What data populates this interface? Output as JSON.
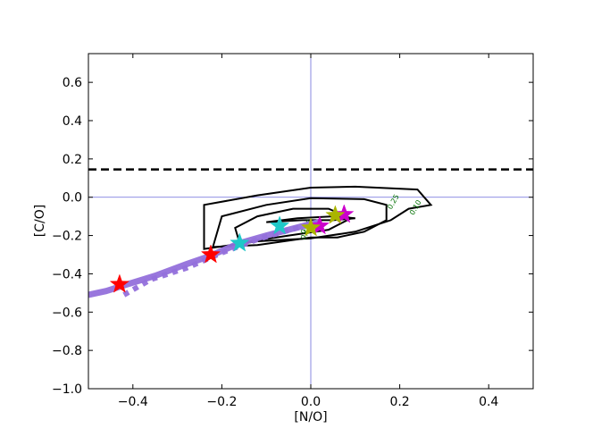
{
  "chart_data": {
    "type": "line",
    "title": "",
    "xlabel": "[N/O]",
    "ylabel": "[C/O]",
    "xlim": [
      -0.5,
      0.5
    ],
    "ylim": [
      -1.0,
      0.75
    ],
    "xticks": [
      -0.4,
      -0.2,
      0.0,
      0.2,
      0.4
    ],
    "yticks": [
      -1.0,
      -0.8,
      -0.6,
      -0.4,
      -0.2,
      0.0,
      0.2,
      0.4,
      0.6
    ],
    "xtick_labels": [
      "−0.4",
      "−0.2",
      "0.0",
      "0.2",
      "0.4"
    ],
    "ytick_labels": [
      "−1.0",
      "−0.8",
      "−0.6",
      "−0.4",
      "−0.2",
      "0.0",
      "0.2",
      "0.4",
      "0.6"
    ],
    "grid": false,
    "reference_lines": {
      "color": "#6b6bdb",
      "x": 0.0,
      "y": 0.0
    },
    "dashed_line": {
      "y": 0.145,
      "color": "#000000",
      "style": "dashed"
    },
    "contours": [
      {
        "level": "0.10",
        "label": "0.10",
        "label_at": [
          0.24,
          -0.06
        ],
        "points": [
          [
            -0.24,
            -0.27
          ],
          [
            -0.12,
            -0.23
          ],
          [
            0.0,
            -0.215
          ],
          [
            0.1,
            -0.18
          ],
          [
            0.18,
            -0.12
          ],
          [
            0.22,
            -0.06
          ],
          [
            0.27,
            -0.04
          ],
          [
            0.24,
            0.04
          ],
          [
            0.1,
            0.055
          ],
          [
            0.0,
            0.05
          ],
          [
            -0.12,
            0.01
          ],
          [
            -0.24,
            -0.04
          ]
        ]
      },
      {
        "level": "0.25",
        "label": "0.25",
        "label_at": [
          0.19,
          -0.03
        ],
        "points": [
          [
            -0.22,
            -0.26
          ],
          [
            -0.12,
            -0.25
          ],
          [
            0.0,
            -0.21
          ],
          [
            0.06,
            -0.21
          ],
          [
            0.12,
            -0.18
          ],
          [
            0.17,
            -0.12
          ],
          [
            0.17,
            -0.04
          ],
          [
            0.12,
            -0.01
          ],
          [
            0.0,
            -0.005
          ],
          [
            -0.1,
            -0.04
          ],
          [
            -0.2,
            -0.1
          ]
        ]
      },
      {
        "level": "0.50",
        "label": "0.50",
        "label_at": [
          -0.005,
          -0.19
        ],
        "points": [
          [
            -0.16,
            -0.24
          ],
          [
            -0.05,
            -0.2
          ],
          [
            0.04,
            -0.17
          ],
          [
            0.09,
            -0.11
          ],
          [
            0.04,
            -0.06
          ],
          [
            -0.04,
            -0.06
          ],
          [
            -0.12,
            -0.1
          ],
          [
            -0.17,
            -0.16
          ]
        ]
      },
      {
        "level": "0.75",
        "label": "0.75",
        "label_at": [
          -0.005,
          -0.16
        ],
        "points": [
          [
            -0.1,
            -0.13
          ],
          [
            -0.02,
            -0.12
          ],
          [
            0.05,
            -0.12
          ],
          [
            0.1,
            -0.11
          ],
          [
            0.05,
            -0.1
          ],
          [
            -0.03,
            -0.11
          ]
        ]
      }
    ],
    "series": [
      {
        "color": "#9370db",
        "style": "solid",
        "width": 7,
        "x": [
          -0.5,
          -0.46,
          -0.42,
          -0.35,
          -0.28,
          -0.23,
          -0.16,
          -0.1,
          -0.05,
          0.0,
          0.02
        ],
        "y": [
          -0.51,
          -0.49,
          -0.46,
          -0.41,
          -0.35,
          -0.31,
          -0.24,
          -0.2,
          -0.17,
          -0.14,
          -0.13
        ]
      },
      {
        "color": "#9370db",
        "style": "dotted",
        "width": 6,
        "x": [
          -0.42,
          -0.36,
          -0.28,
          -0.2,
          -0.12,
          -0.06,
          0.0,
          0.03
        ],
        "y": [
          -0.51,
          -0.43,
          -0.37,
          -0.29,
          -0.22,
          -0.18,
          -0.14,
          -0.12
        ]
      }
    ],
    "markers": [
      {
        "color": "#ff0000",
        "x": -0.43,
        "y": -0.455
      },
      {
        "color": "#ff0000",
        "x": -0.225,
        "y": -0.3
      },
      {
        "color": "#1ec8c8",
        "x": -0.16,
        "y": -0.24
      },
      {
        "color": "#1ec8c8",
        "x": -0.07,
        "y": -0.15
      },
      {
        "color": "#cc00cc",
        "x": 0.02,
        "y": -0.15
      },
      {
        "color": "#cc00cc",
        "x": 0.075,
        "y": -0.09
      },
      {
        "color": "#aab400",
        "x": 0.055,
        "y": -0.095
      },
      {
        "color": "#aab400",
        "x": 0.0,
        "y": -0.16
      }
    ]
  }
}
